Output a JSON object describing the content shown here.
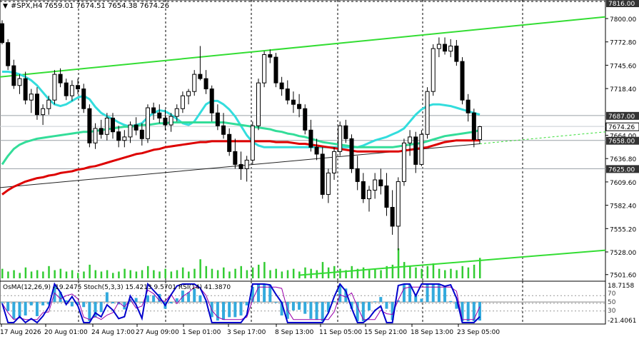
{
  "header": {
    "symbol": "#SPX,H4",
    "ohlc": "7659.01 7674.51 7654.38 7674.26"
  },
  "price_axis": {
    "ticks": [
      "7800.00",
      "7772.80",
      "7745.60",
      "7718.40",
      "7664.00",
      "7636.80",
      "7609.60",
      "7582.40",
      "7555.20",
      "7528.00",
      "7501.60"
    ],
    "tick_values": [
      7800.0,
      7772.8,
      7745.6,
      7718.4,
      7664.0,
      7636.8,
      7609.6,
      7582.4,
      7555.2,
      7528.0,
      7501.6
    ],
    "top_label": "7816.00",
    "current_price": "7674.26",
    "level_labels": [
      {
        "text": "7687.00",
        "value": 7687.0,
        "color": "#ffffff"
      },
      {
        "text": "7658.00",
        "value": 7658.0,
        "color": "#ffffff"
      },
      {
        "text": "7625.00",
        "value": 7625.0,
        "color": "#ffffff"
      }
    ]
  },
  "time_axis": {
    "labels": [
      "17 Aug 2026",
      "20 Aug 01:00",
      "24 Aug 17:00",
      "27 Aug 09:00",
      "1 Sep 01:00",
      "3 Sep 17:00",
      "8 Sep 13:00",
      "11 Sep 05:00",
      "15 Sep 21:00",
      "18 Sep 13:00",
      "23 Sep 05:00"
    ]
  },
  "indicator": {
    "caption": "OsMA(12,26,9) -19.2475 Stoch(5,3,3) 15.4213 9.5701 RSI(14) 41.3870",
    "axis_top": "18.7158",
    "axis_bottom": "-21.4061",
    "levels": [
      "70",
      "50",
      "30"
    ]
  },
  "colors": {
    "grid": "#000000",
    "candle": "#000000",
    "ema_red": "#dd0000",
    "ema_cyan": "#33dddd",
    "ema_green": "#33dd99",
    "channel": "#33dd33",
    "volume": "#33cc33",
    "osma": "#33aadd",
    "stoch": "#0000cc",
    "rsi": "#9900aa",
    "label_bg": "#333333"
  },
  "chart_data": {
    "type": "candlestick",
    "timeframe": "H4",
    "ylim": [
      7495,
      7820
    ],
    "candles": [
      [
        7794,
        7798,
        7770,
        7772
      ],
      [
        7772,
        7776,
        7740,
        7745
      ],
      [
        7745,
        7752,
        7718,
        7722
      ],
      [
        7722,
        7735,
        7712,
        7730
      ],
      [
        7730,
        7738,
        7700,
        7705
      ],
      [
        7705,
        7718,
        7690,
        7712
      ],
      [
        7712,
        7720,
        7682,
        7688
      ],
      [
        7688,
        7700,
        7676,
        7695
      ],
      [
        7695,
        7710,
        7688,
        7705
      ],
      [
        7705,
        7740,
        7700,
        7735
      ],
      [
        7735,
        7742,
        7720,
        7725
      ],
      [
        7725,
        7730,
        7705,
        7710
      ],
      [
        7710,
        7728,
        7704,
        7722
      ],
      [
        7722,
        7730,
        7712,
        7718
      ],
      [
        7718,
        7724,
        7690,
        7695
      ],
      [
        7695,
        7700,
        7650,
        7655
      ],
      [
        7655,
        7678,
        7648,
        7672
      ],
      [
        7672,
        7682,
        7660,
        7665
      ],
      [
        7665,
        7690,
        7658,
        7684
      ],
      [
        7684,
        7690,
        7660,
        7668
      ],
      [
        7668,
        7675,
        7650,
        7658
      ],
      [
        7658,
        7670,
        7650,
        7662
      ],
      [
        7662,
        7680,
        7655,
        7676
      ],
      [
        7676,
        7685,
        7664,
        7670
      ],
      [
        7670,
        7678,
        7652,
        7660
      ],
      [
        7660,
        7700,
        7655,
        7696
      ],
      [
        7696,
        7702,
        7682,
        7690
      ],
      [
        7690,
        7700,
        7678,
        7684
      ],
      [
        7684,
        7694,
        7670,
        7676
      ],
      [
        7676,
        7690,
        7668,
        7686
      ],
      [
        7686,
        7700,
        7680,
        7695
      ],
      [
        7695,
        7715,
        7690,
        7710
      ],
      [
        7710,
        7718,
        7700,
        7715
      ],
      [
        7715,
        7740,
        7710,
        7735
      ],
      [
        7735,
        7768,
        7728,
        7730
      ],
      [
        7730,
        7740,
        7712,
        7718
      ],
      [
        7718,
        7722,
        7680,
        7690
      ],
      [
        7690,
        7700,
        7670,
        7675
      ],
      [
        7675,
        7690,
        7660,
        7665
      ],
      [
        7665,
        7672,
        7640,
        7645
      ],
      [
        7645,
        7660,
        7625,
        7630
      ],
      [
        7630,
        7645,
        7612,
        7625
      ],
      [
        7625,
        7640,
        7610,
        7635
      ],
      [
        7635,
        7680,
        7630,
        7675
      ],
      [
        7675,
        7730,
        7670,
        7725
      ],
      [
        7725,
        7762,
        7720,
        7758
      ],
      [
        7758,
        7764,
        7748,
        7755
      ],
      [
        7755,
        7760,
        7720,
        7725
      ],
      [
        7725,
        7732,
        7710,
        7718
      ],
      [
        7718,
        7728,
        7700,
        7705
      ],
      [
        7705,
        7715,
        7690,
        7700
      ],
      [
        7700,
        7712,
        7685,
        7695
      ],
      [
        7695,
        7700,
        7665,
        7670
      ],
      [
        7670,
        7682,
        7645,
        7650
      ],
      [
        7650,
        7660,
        7635,
        7642
      ],
      [
        7642,
        7650,
        7590,
        7595
      ],
      [
        7595,
        7625,
        7585,
        7620
      ],
      [
        7620,
        7650,
        7612,
        7645
      ],
      [
        7645,
        7680,
        7640,
        7675
      ],
      [
        7675,
        7682,
        7655,
        7660
      ],
      [
        7660,
        7665,
        7620,
        7625
      ],
      [
        7625,
        7640,
        7600,
        7610
      ],
      [
        7610,
        7620,
        7585,
        7590
      ],
      [
        7590,
        7605,
        7575,
        7600
      ],
      [
        7600,
        7620,
        7590,
        7612
      ],
      [
        7612,
        7625,
        7595,
        7605
      ],
      [
        7605,
        7620,
        7570,
        7580
      ],
      [
        7580,
        7600,
        7548,
        7558
      ],
      [
        7558,
        7615,
        7530,
        7610
      ],
      [
        7610,
        7660,
        7605,
        7655
      ],
      [
        7655,
        7670,
        7640,
        7662
      ],
      [
        7662,
        7668,
        7620,
        7630
      ],
      [
        7630,
        7670,
        7628,
        7665
      ],
      [
        7665,
        7720,
        7660,
        7715
      ],
      [
        7715,
        7770,
        7710,
        7765
      ],
      [
        7765,
        7778,
        7755,
        7770
      ],
      [
        7770,
        7778,
        7758,
        7762
      ],
      [
        7762,
        7776,
        7755,
        7768
      ],
      [
        7768,
        7775,
        7745,
        7750
      ],
      [
        7750,
        7755,
        7700,
        7705
      ],
      [
        7705,
        7712,
        7680,
        7690
      ],
      [
        7690,
        7695,
        7650,
        7659
      ],
      [
        7659,
        7675,
        7654,
        7674
      ]
    ],
    "moving_averages": [
      {
        "name": "MA cyan",
        "color": "#33dddd",
        "values": [
          7738,
          7738,
          7737,
          7735,
          7732,
          7728,
          7722,
          7714,
          7706,
          7700,
          7698,
          7700,
          7704,
          7708,
          7710,
          7706,
          7697,
          7690,
          7686,
          7683,
          7679,
          7676,
          7674,
          7676,
          7678,
          7685,
          7690,
          7693,
          7692,
          7688,
          7683,
          7678,
          7676,
          7680,
          7690,
          7700,
          7704,
          7704,
          7700,
          7694,
          7686,
          7675,
          7664,
          7656,
          7652,
          7650,
          7650,
          7650,
          7650,
          7650,
          7650,
          7650,
          7650,
          7650,
          7650,
          7650,
          7650,
          7650,
          7650,
          7650,
          7650,
          7650,
          7652,
          7655,
          7658,
          7660,
          7662,
          7665,
          7668,
          7672,
          7680,
          7688,
          7694,
          7698,
          7700,
          7700,
          7699,
          7698,
          7696,
          7694,
          7692,
          7690,
          7688
        ]
      },
      {
        "name": "MA green",
        "color": "#33dd99",
        "values": [
          7630,
          7640,
          7648,
          7653,
          7656,
          7658,
          7660,
          7661,
          7662,
          7663,
          7664,
          7665,
          7666,
          7667,
          7668,
          7668,
          7669,
          7670,
          7671,
          7672,
          7673,
          7674,
          7674,
          7675,
          7676,
          7676,
          7677,
          7678,
          7678,
          7679,
          7679,
          7679,
          7679,
          7679,
          7679,
          7679,
          7679,
          7679,
          7679,
          7678,
          7677,
          7676,
          7675,
          7674,
          7673,
          7672,
          7671,
          7669,
          7668,
          7666,
          7665,
          7663,
          7662,
          7660,
          7658,
          7656,
          7655,
          7654,
          7653,
          7652,
          7651,
          7650,
          7650,
          7650,
          7650,
          7650,
          7650,
          7650,
          7651,
          7652,
          7653,
          7654,
          7655,
          7657,
          7659,
          7661,
          7663,
          7664,
          7665,
          7666,
          7667,
          7668,
          7670
        ]
      },
      {
        "name": "MA red",
        "color": "#dd0000",
        "values": [
          7595,
          7600,
          7604,
          7607,
          7610,
          7612,
          7614,
          7615,
          7617,
          7618,
          7620,
          7621,
          7622,
          7624,
          7625,
          7627,
          7628,
          7630,
          7632,
          7634,
          7636,
          7638,
          7640,
          7642,
          7643,
          7645,
          7647,
          7648,
          7650,
          7651,
          7652,
          7653,
          7654,
          7655,
          7656,
          7656,
          7657,
          7657,
          7657,
          7657,
          7657,
          7657,
          7657,
          7657,
          7657,
          7657,
          7657,
          7656,
          7656,
          7656,
          7655,
          7654,
          7654,
          7653,
          7652,
          7651,
          7650,
          7649,
          7648,
          7647,
          7646,
          7645,
          7645,
          7645,
          7645,
          7645,
          7645,
          7645,
          7645,
          7646,
          7647,
          7648,
          7649,
          7650,
          7652,
          7654,
          7656,
          7657,
          7658,
          7658,
          7658,
          7658,
          7658
        ]
      }
    ],
    "trend_lines": [
      {
        "name": "upper channel",
        "color": "#33dd33"
      },
      {
        "name": "lower channel",
        "color": "#33dd33"
      },
      {
        "name": "mid trend",
        "color": "#000000"
      }
    ],
    "volume": [
      7,
      5,
      6,
      4,
      8,
      5,
      6,
      5,
      9,
      6,
      7,
      5,
      6,
      4,
      5,
      10,
      6,
      5,
      6,
      4,
      5,
      7,
      6,
      5,
      6,
      9,
      6,
      5,
      7,
      5,
      6,
      8,
      5,
      7,
      14,
      9,
      7,
      6,
      8,
      5,
      7,
      9,
      6,
      8,
      10,
      12,
      6,
      7,
      5,
      6,
      7,
      5,
      8,
      7,
      6,
      12,
      8,
      9,
      7,
      6,
      9,
      7,
      8,
      6,
      7,
      6,
      9,
      10,
      22,
      12,
      9,
      8,
      7,
      9,
      11,
      7,
      6,
      7,
      6,
      9,
      8,
      10,
      15
    ],
    "indicator": {
      "osma_last": -19.2475,
      "stoch_k": 15.4213,
      "stoch_d": 9.5701,
      "rsi": 41.387,
      "range": [
        -21.4061,
        18.7158
      ]
    }
  }
}
